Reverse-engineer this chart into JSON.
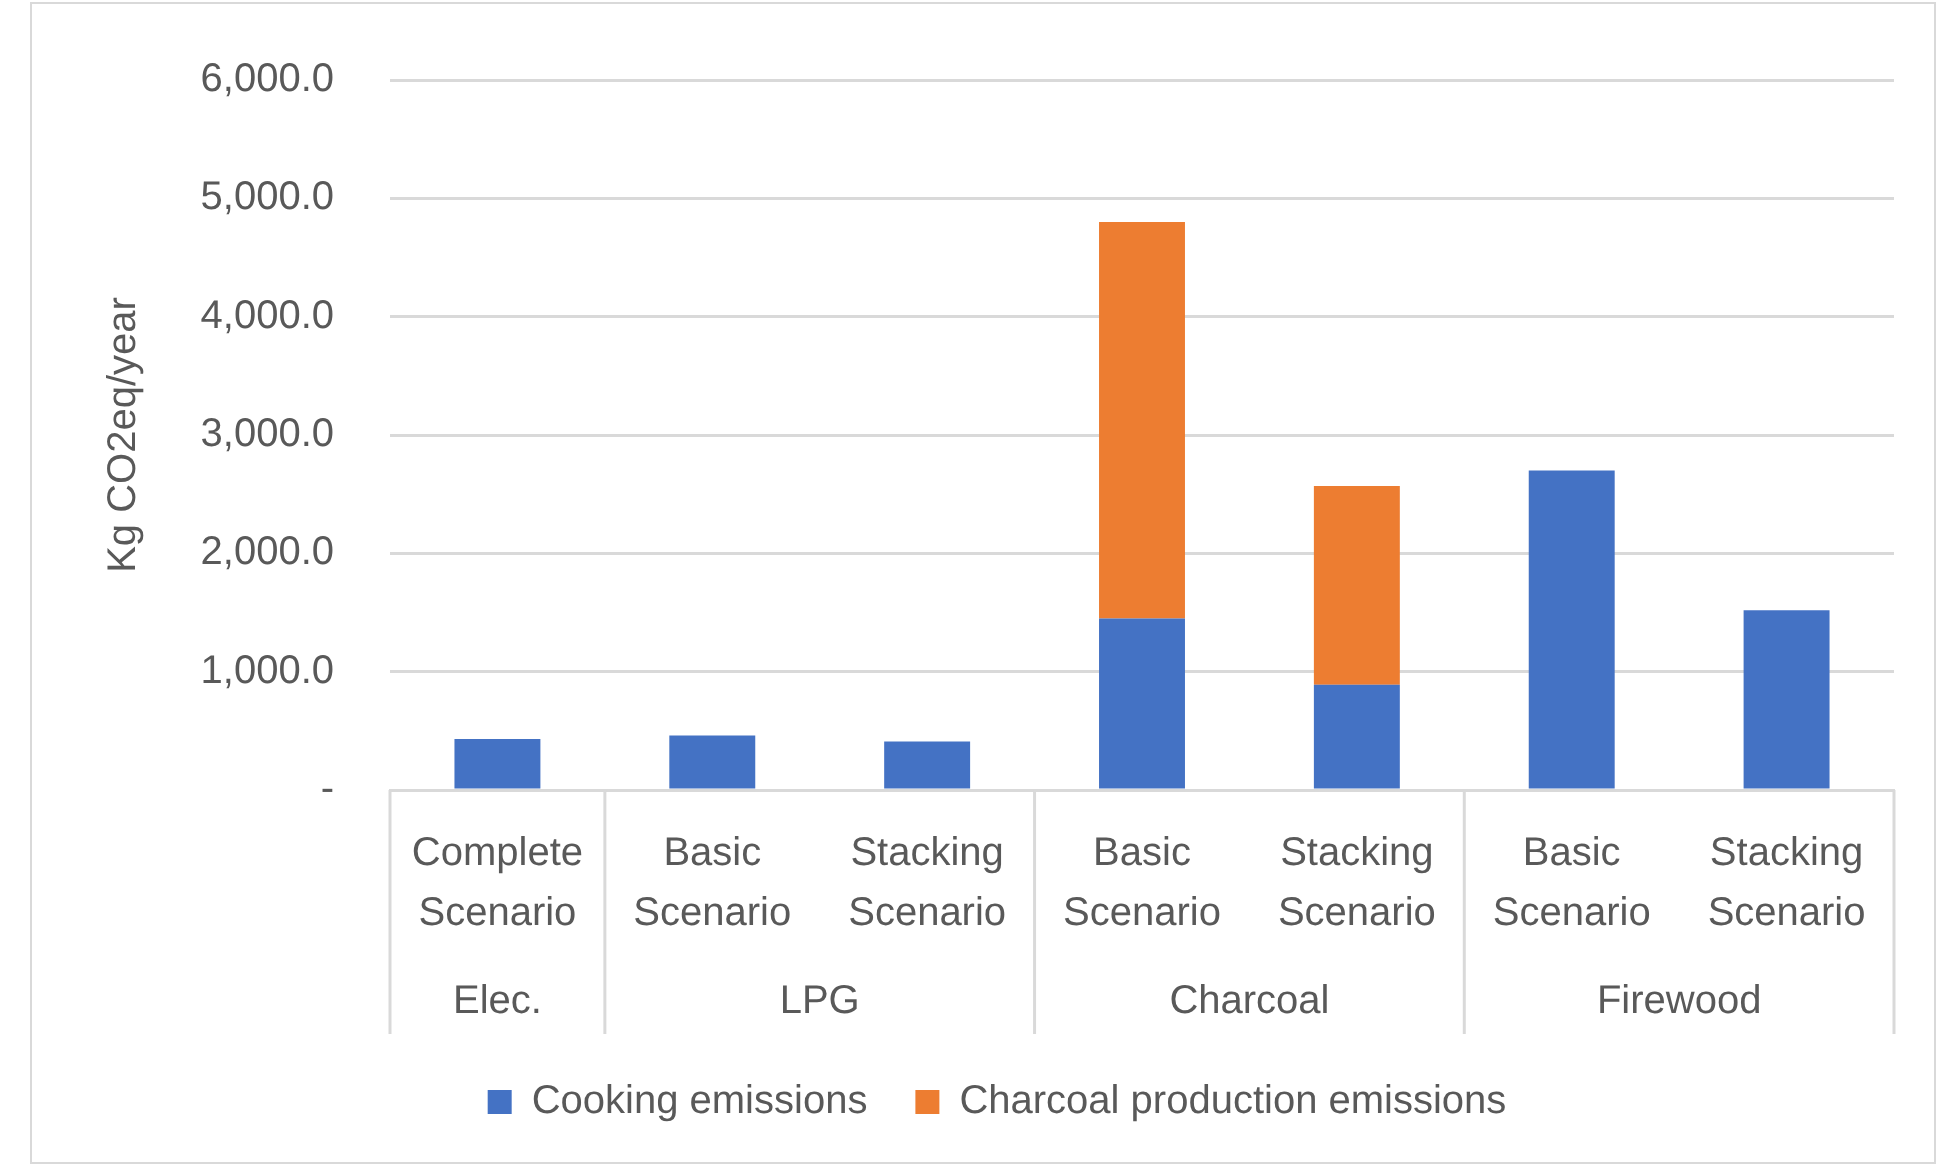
{
  "chart_data": {
    "type": "bar",
    "ylabel": "Kg CO2eq/year",
    "categories": [
      "Complete Scenario",
      "Basic Scenario",
      "Stacking Scenario",
      "Basic Scenario",
      "Stacking Scenario",
      "Basic Scenario",
      "Stacking Scenario"
    ],
    "series": [
      {
        "name": "Cooking emissions",
        "color": "#4472c4",
        "values": [
          430,
          460,
          410,
          1450,
          890,
          2700,
          1520
        ]
      },
      {
        "name": "Charcoal production emissions",
        "color": "#ed7d31",
        "values": [
          null,
          null,
          null,
          3350,
          1680,
          null,
          null
        ]
      }
    ],
    "stacked": true,
    "ylim": [
      0,
      6000
    ],
    "yticks": [
      {
        "value": 0,
        "label": "-"
      },
      {
        "value": 1000,
        "label": "1,000.0"
      },
      {
        "value": 2000,
        "label": "2,000.0"
      },
      {
        "value": 3000,
        "label": "3,000.0"
      },
      {
        "value": 4000,
        "label": "4,000.0"
      },
      {
        "value": 5000,
        "label": "5,000.0"
      },
      {
        "value": 6000,
        "label": "6,000.0"
      }
    ],
    "grid": "y",
    "legend": "bottom",
    "annotations": [
      "Elec.",
      "LPG",
      "Charcoal",
      "Firewood"
    ]
  }
}
